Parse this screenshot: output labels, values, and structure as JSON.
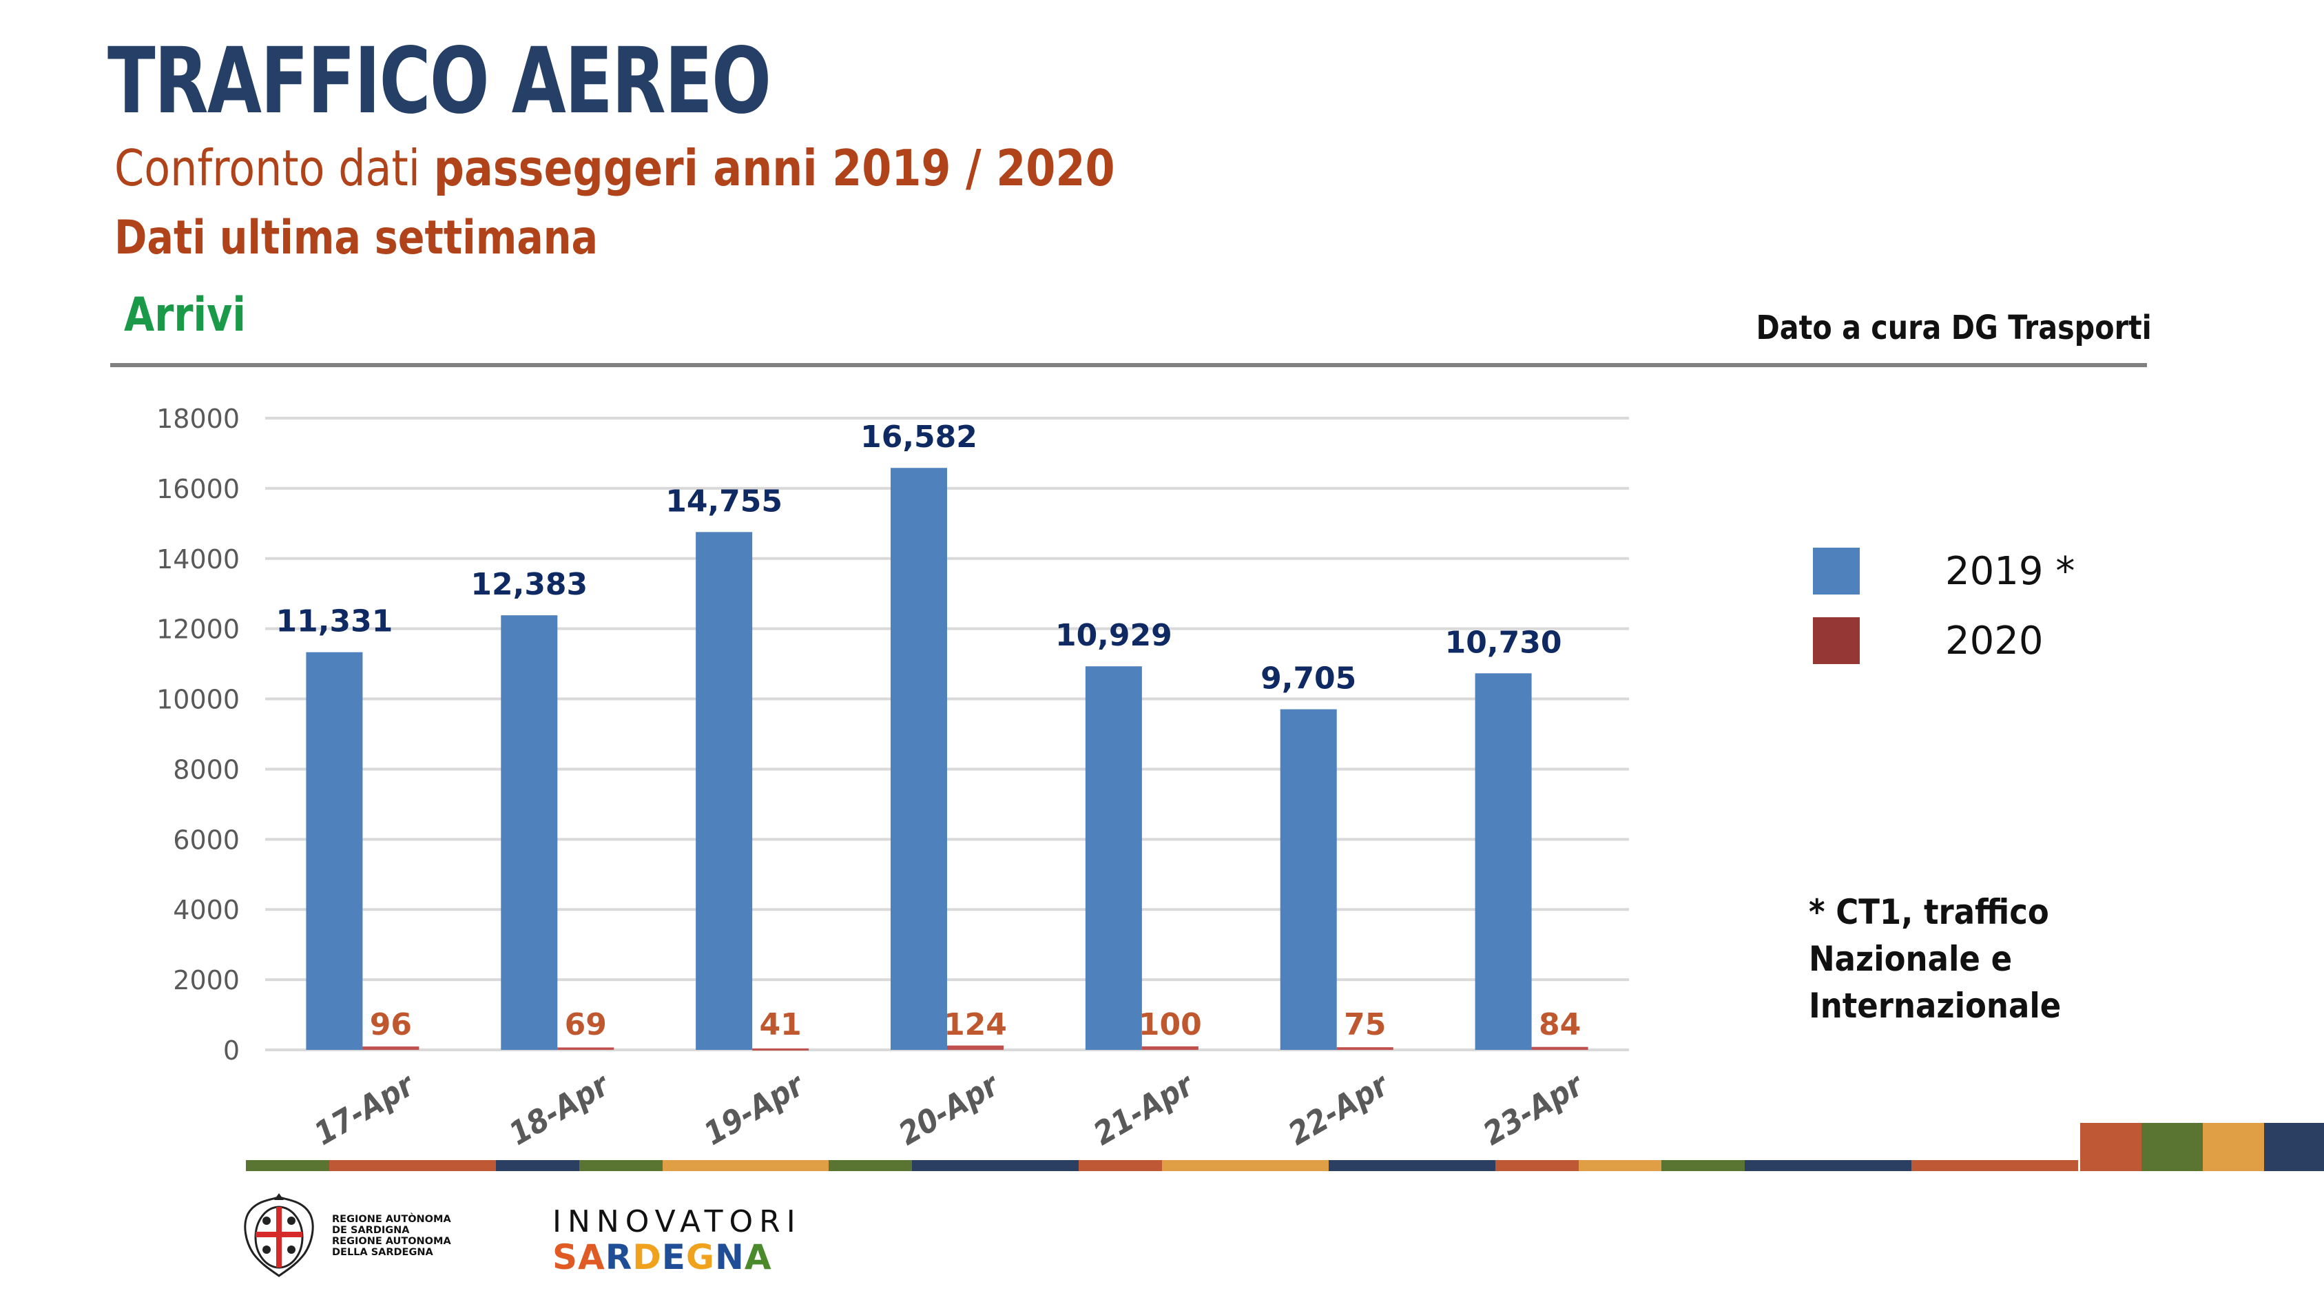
{
  "header": {
    "title": "TRAFFICO AEREO",
    "subtitle_light": "Confronto dati ",
    "subtitle_bold": "passeggeri anni 2019 / 2020",
    "subtitle2": "Dati ultima settimana",
    "section": "Arrivi",
    "credit": "Dato a cura DG Trasporti"
  },
  "colors": {
    "title": "#263f66",
    "subtitle": "#b0431a",
    "section": "#1a9a48",
    "series_2019": "#4f81bd",
    "series_2020": "#c0504d",
    "legend_2020": "#953735",
    "label_2019": "#0f2a63",
    "label_2020": "#c0582f",
    "grid": "#d9d9d9",
    "tick": "#595959"
  },
  "chart_data": {
    "type": "bar",
    "title": "",
    "xlabel": "",
    "ylabel": "",
    "categories": [
      "17-Apr",
      "18-Apr",
      "19-Apr",
      "20-Apr",
      "21-Apr",
      "22-Apr",
      "23-Apr"
    ],
    "series": [
      {
        "name": "2019 *",
        "values": [
          11331,
          12383,
          14755,
          16582,
          10929,
          9705,
          10730
        ],
        "labels": [
          "11,331",
          "12,383",
          "14,755",
          "16,582",
          "10,929",
          "9,705",
          "10,730"
        ]
      },
      {
        "name": "2020",
        "values": [
          96,
          69,
          41,
          124,
          100,
          75,
          84
        ],
        "labels": [
          "96",
          "69",
          "41",
          "124",
          "100",
          "75",
          "84"
        ]
      }
    ],
    "ylim": [
      0,
      18000
    ],
    "yticks": [
      0,
      2000,
      4000,
      6000,
      8000,
      10000,
      12000,
      14000,
      16000,
      18000
    ],
    "grid": true,
    "legend_position": "right"
  },
  "legend": {
    "items": [
      {
        "label": "2019 *",
        "color": "#4f81bd"
      },
      {
        "label": "2020",
        "color": "#953735"
      }
    ]
  },
  "footnote": {
    "lines": [
      "* CT1, traffico",
      "Nazionale e",
      "Internazionale"
    ]
  },
  "footer": {
    "region_lines": [
      "REGIONE AUTÒNOMA",
      "DE SARDIGNA",
      "REGIONE AUTONOMA",
      "DELLA SARDEGNA"
    ],
    "innovatori_top": "INNOVATORI",
    "innovatori_bottom": "SARDEGNA",
    "innovatori_letter_colors": [
      "#e05a24",
      "#e05a24",
      "#1f4e96",
      "#f0a21c",
      "#1f4e96",
      "#f0a21c",
      "#1f4e96",
      "#4a8a2a"
    ],
    "stripe_colors": [
      "#5a7431",
      "#bf5835",
      "#bf5835",
      "#2b3f63",
      "#5a7431",
      "#e09f45",
      "#e09f45",
      "#5a7431",
      "#2b3f63",
      "#2b3f63",
      "#bf5835",
      "#e09f45",
      "#e09f45",
      "#2b3f63",
      "#2b3f63",
      "#bf5835",
      "#e09f45",
      "#5a7431",
      "#2b3f63",
      "#2b3f63",
      "#bf5835",
      "#bf5835"
    ],
    "block_colors": [
      "#bf5835",
      "#5a7431",
      "#e09f45",
      "#2b3f63"
    ]
  }
}
